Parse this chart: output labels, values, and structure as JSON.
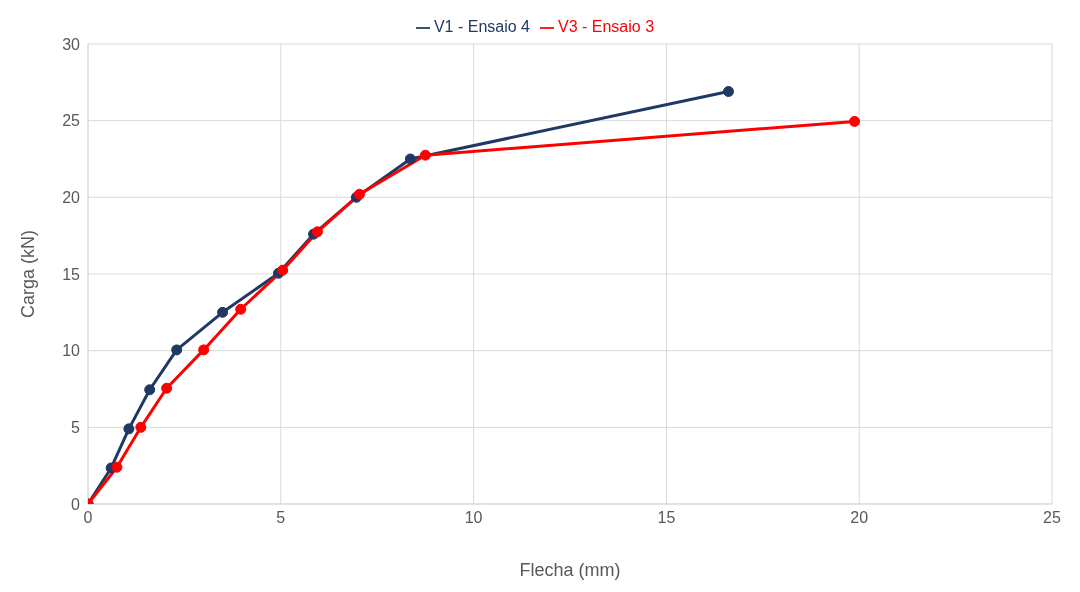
{
  "chart_data": {
    "type": "line",
    "xlabel": "Flecha (mm)",
    "ylabel": "Carga (kN)",
    "xlim": [
      0,
      25
    ],
    "xticks": [
      0,
      5,
      10,
      15,
      20,
      25
    ],
    "ylim": [
      0,
      30
    ],
    "yticks": [
      0,
      5,
      10,
      15,
      20,
      25,
      30
    ],
    "grid": true,
    "legend": "top",
    "marker": "circle",
    "line_style": "solid",
    "series": [
      {
        "name": "V1 - Ensaio 4",
        "color": "#203864",
        "x": [
          0,
          0.6,
          1.06,
          1.6,
          2.3,
          3.49,
          4.94,
          5.85,
          6.96,
          8.36,
          16.61
        ],
        "values": [
          0,
          2.35,
          4.9,
          7.45,
          10.05,
          12.5,
          15.05,
          17.6,
          20.0,
          22.5,
          26.9
        ]
      },
      {
        "name": "V3 - Ensaio 3",
        "color": "#ff0000",
        "x": [
          0,
          0.75,
          1.37,
          2.04,
          3.0,
          3.96,
          5.05,
          5.95,
          7.04,
          8.75,
          19.88
        ],
        "values": [
          0,
          2.4,
          5.0,
          7.55,
          10.05,
          12.7,
          15.25,
          17.75,
          20.2,
          22.75,
          24.95
        ]
      }
    ]
  }
}
